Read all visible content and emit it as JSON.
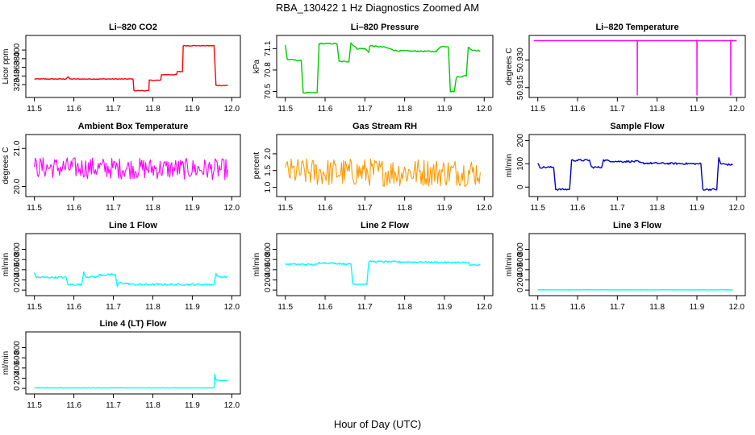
{
  "figure": {
    "title": "RBA_130422  1 Hz Diagnostics Zoomed AM",
    "xlabel": "Hour of Day (UTC)"
  },
  "chart_data": [
    {
      "type": "line",
      "title": "Li–820 CO2",
      "ylabel": "Licor ppm",
      "color": "#ff0000",
      "xlim": [
        11.5,
        12.0
      ],
      "ylim": [
        296,
        428
      ],
      "xticks": [
        11.5,
        11.6,
        11.7,
        11.8,
        11.9,
        12.0
      ],
      "xtick_labels": [
        "11.5",
        "11.6",
        "11.7",
        "11.8",
        "11.9",
        "12.0"
      ],
      "yticks": [
        320,
        340,
        360,
        380,
        400
      ],
      "ytick_labels": [
        "320",
        "340",
        "360",
        "380",
        "400"
      ],
      "noise": 0.8,
      "series": [
        {
          "points": [
            [
              11.5,
              333
            ],
            [
              11.58,
              333
            ],
            [
              11.585,
              338
            ],
            [
              11.59,
              333
            ],
            [
              11.75,
              333
            ],
            [
              11.752,
              306
            ],
            [
              11.79,
              306
            ],
            [
              11.791,
              330
            ],
            [
              11.82,
              330
            ],
            [
              11.822,
              343
            ],
            [
              11.86,
              343
            ],
            [
              11.862,
              350
            ],
            [
              11.875,
              350
            ],
            [
              11.877,
              410
            ],
            [
              11.955,
              410
            ],
            [
              11.96,
              318
            ],
            [
              11.99,
              318
            ]
          ]
        }
      ]
    },
    {
      "type": "line",
      "title": "Li–820 Pressure",
      "ylabel": "kPa",
      "color": "#00cc00",
      "xlim": [
        11.5,
        12.0
      ],
      "ylim": [
        70.45,
        71.25
      ],
      "xticks": [
        11.5,
        11.6,
        11.7,
        11.8,
        11.9,
        12.0
      ],
      "xtick_labels": [
        "11.5",
        "11.6",
        "11.7",
        "11.8",
        "11.9",
        "12.0"
      ],
      "yticks": [
        70.5,
        70.8,
        71.1
      ],
      "ytick_labels": [
        "70.5",
        "70.8",
        "71.1"
      ],
      "noise": 0.008,
      "series": [
        {
          "points": [
            [
              11.5,
              71.15
            ],
            [
              11.505,
              70.95
            ],
            [
              11.54,
              70.93
            ],
            [
              11.545,
              70.48
            ],
            [
              11.58,
              70.48
            ],
            [
              11.585,
              71.17
            ],
            [
              11.63,
              71.17
            ],
            [
              11.635,
              70.92
            ],
            [
              11.66,
              70.92
            ],
            [
              11.665,
              71.18
            ],
            [
              11.68,
              71.1
            ],
            [
              11.7,
              71.1
            ],
            [
              11.71,
              71.05
            ],
            [
              11.712,
              71.14
            ],
            [
              11.75,
              71.12
            ],
            [
              11.78,
              71.07
            ],
            [
              11.88,
              71.06
            ],
            [
              11.89,
              71.13
            ],
            [
              11.91,
              71.13
            ],
            [
              11.915,
              70.5
            ],
            [
              11.925,
              70.5
            ],
            [
              11.93,
              70.7
            ],
            [
              11.955,
              70.72
            ],
            [
              11.96,
              71.12
            ],
            [
              11.97,
              71.08
            ],
            [
              11.99,
              71.07
            ]
          ]
        }
      ]
    },
    {
      "type": "line",
      "title": "Li–820 Temperature",
      "ylabel": "degrees C",
      "color": "#ff00ff",
      "xlim": [
        11.5,
        12.0
      ],
      "ylim": [
        50.911,
        50.942
      ],
      "xticks": [
        11.5,
        11.6,
        11.7,
        11.8,
        11.9,
        12.0
      ],
      "xtick_labels": [
        "11.5",
        "11.6",
        "11.7",
        "11.8",
        "11.9",
        "12.0"
      ],
      "yticks": [
        50.915,
        50.93
      ],
      "ytick_labels": [
        "50.915",
        "50.930"
      ],
      "noise": 0,
      "series": [
        {
          "points": [
            [
              11.49,
              50.9405
            ],
            [
              11.75,
              50.9405
            ],
            [
              11.7502,
              50.911
            ],
            [
              11.7504,
              50.9405
            ],
            [
              11.9,
              50.9405
            ],
            [
              11.9002,
              50.911
            ],
            [
              11.9004,
              50.9405
            ],
            [
              11.985,
              50.9405
            ],
            [
              11.9852,
              50.911
            ],
            [
              11.9854,
              50.9405
            ],
            [
              12.0,
              50.9405
            ]
          ]
        }
      ]
    },
    {
      "type": "line",
      "title": "Ambient Box Temperature",
      "ylabel": "degrees C",
      "color": "#ff00ff",
      "xlim": [
        11.5,
        12.0
      ],
      "ylim": [
        19.8,
        21.3
      ],
      "xticks": [
        11.5,
        11.6,
        11.7,
        11.8,
        11.9,
        12.0
      ],
      "xtick_labels": [
        "11.5",
        "11.6",
        "11.7",
        "11.8",
        "11.9",
        "12.0"
      ],
      "yticks": [
        20.0,
        21.0
      ],
      "ytick_labels": [
        "20.0",
        "21.0"
      ],
      "noise": 0.28,
      "series": [
        {
          "points": [
            [
              11.5,
              20.5
            ],
            [
              11.99,
              20.45
            ]
          ]
        }
      ]
    },
    {
      "type": "line",
      "title": "Gas Stream RH",
      "ylabel": "percent",
      "color": "#ff9900",
      "xlim": [
        11.5,
        12.0
      ],
      "ylim": [
        0.8,
        2.5
      ],
      "xticks": [
        11.5,
        11.6,
        11.7,
        11.8,
        11.9,
        12.0
      ],
      "xtick_labels": [
        "11.5",
        "11.6",
        "11.7",
        "11.8",
        "11.9",
        "12.0"
      ],
      "yticks": [
        1.0,
        1.5,
        2.0
      ],
      "ytick_labels": [
        "1.0",
        "1.5",
        "2.0"
      ],
      "noise": 0.42,
      "series": [
        {
          "points": [
            [
              11.5,
              1.45
            ],
            [
              11.99,
              1.45
            ]
          ]
        }
      ]
    },
    {
      "type": "line",
      "title": "Sample Flow",
      "ylabel": "ml/min",
      "color": "#0000cc",
      "xlim": [
        11.5,
        12.0
      ],
      "ylim": [
        -30,
        215
      ],
      "xticks": [
        11.5,
        11.6,
        11.7,
        11.8,
        11.9,
        12.0
      ],
      "xtick_labels": [
        "11.5",
        "11.6",
        "11.7",
        "11.8",
        "11.9",
        "12.0"
      ],
      "yticks": [
        0,
        100,
        200
      ],
      "ytick_labels": [
        "0",
        "100",
        "200"
      ],
      "noise": 4,
      "series": [
        {
          "points": [
            [
              11.5,
              100
            ],
            [
              11.505,
              85
            ],
            [
              11.54,
              85
            ],
            [
              11.545,
              -10
            ],
            [
              11.58,
              -10
            ],
            [
              11.585,
              115
            ],
            [
              11.63,
              115
            ],
            [
              11.635,
              85
            ],
            [
              11.66,
              85
            ],
            [
              11.665,
              115
            ],
            [
              11.7,
              110
            ],
            [
              11.75,
              110
            ],
            [
              11.76,
              103
            ],
            [
              11.9,
              100
            ],
            [
              11.91,
              100
            ],
            [
              11.915,
              -10
            ],
            [
              11.95,
              -10
            ],
            [
              11.955,
              125
            ],
            [
              11.96,
              100
            ],
            [
              11.99,
              95
            ]
          ]
        }
      ]
    },
    {
      "type": "line",
      "title": "Line 1 Flow",
      "ylabel": "ml/min",
      "color": "#00ffff",
      "xlim": [
        11.5,
        12.0
      ],
      "ylim": [
        -60,
        1060
      ],
      "xticks": [
        11.5,
        11.6,
        11.7,
        11.8,
        11.9,
        12.0
      ],
      "xtick_labels": [
        "11.5",
        "11.6",
        "11.7",
        "11.8",
        "11.9",
        "12.0"
      ],
      "yticks": [
        0,
        200,
        400,
        600,
        800
      ],
      "ytick_labels": [
        "0",
        "200",
        "400",
        "600",
        "800"
      ],
      "noise": 18,
      "series": [
        {
          "points": [
            [
              11.5,
              340
            ],
            [
              11.505,
              250
            ],
            [
              11.58,
              250
            ],
            [
              11.585,
              110
            ],
            [
              11.62,
              110
            ],
            [
              11.625,
              360
            ],
            [
              11.63,
              260
            ],
            [
              11.66,
              260
            ],
            [
              11.665,
              300
            ],
            [
              11.705,
              300
            ],
            [
              11.71,
              70
            ],
            [
              11.715,
              150
            ],
            [
              11.75,
              110
            ],
            [
              11.955,
              110
            ],
            [
              11.96,
              320
            ],
            [
              11.965,
              260
            ],
            [
              11.99,
              260
            ]
          ]
        }
      ]
    },
    {
      "type": "line",
      "title": "Line 2 Flow",
      "ylabel": "ml/min",
      "color": "#00ffff",
      "xlim": [
        11.5,
        12.0
      ],
      "ylim": [
        -60,
        1060
      ],
      "xticks": [
        11.5,
        11.6,
        11.7,
        11.8,
        11.9,
        12.0
      ],
      "xtick_labels": [
        "11.5",
        "11.6",
        "11.7",
        "11.8",
        "11.9",
        "12.0"
      ],
      "yticks": [
        0,
        200,
        400,
        600,
        800
      ],
      "ytick_labels": [
        "0",
        "200",
        "400",
        "600",
        "800"
      ],
      "noise": 15,
      "series": [
        {
          "points": [
            [
              11.5,
              510
            ],
            [
              11.58,
              500
            ],
            [
              11.585,
              540
            ],
            [
              11.665,
              510
            ],
            [
              11.67,
              120
            ],
            [
              11.705,
              120
            ],
            [
              11.71,
              560
            ],
            [
              11.96,
              540
            ],
            [
              11.965,
              490
            ],
            [
              11.99,
              490
            ]
          ]
        }
      ]
    },
    {
      "type": "line",
      "title": "Line 3 Flow",
      "ylabel": "ml/min",
      "color": "#00ffff",
      "xlim": [
        11.5,
        12.0
      ],
      "ylim": [
        -60,
        1060
      ],
      "xticks": [
        11.5,
        11.6,
        11.7,
        11.8,
        11.9,
        12.0
      ],
      "xtick_labels": [
        "11.5",
        "11.6",
        "11.7",
        "11.8",
        "11.9",
        "12.0"
      ],
      "yticks": [
        0,
        200,
        400,
        600,
        800
      ],
      "ytick_labels": [
        "0",
        "200",
        "400",
        "600",
        "800"
      ],
      "noise": 2,
      "series": [
        {
          "points": [
            [
              11.5,
              5
            ],
            [
              11.99,
              5
            ]
          ]
        }
      ]
    },
    {
      "type": "line",
      "title": "Line 4 (LT) Flow",
      "ylabel": "ml/min",
      "color": "#00ffff",
      "xlim": [
        11.5,
        12.0
      ],
      "ylim": [
        -60,
        1060
      ],
      "xticks": [
        11.5,
        11.6,
        11.7,
        11.8,
        11.9,
        12.0
      ],
      "xtick_labels": [
        "11.5",
        "11.6",
        "11.7",
        "11.8",
        "11.9",
        "12.0"
      ],
      "yticks": [
        0,
        200,
        400,
        600,
        800
      ],
      "ytick_labels": [
        "0",
        "200",
        "400",
        "600",
        "800"
      ],
      "noise": 3,
      "series": [
        {
          "points": [
            [
              11.5,
              10
            ],
            [
              11.955,
              10
            ],
            [
              11.957,
              280
            ],
            [
              11.96,
              160
            ],
            [
              11.99,
              150
            ]
          ]
        }
      ]
    }
  ]
}
